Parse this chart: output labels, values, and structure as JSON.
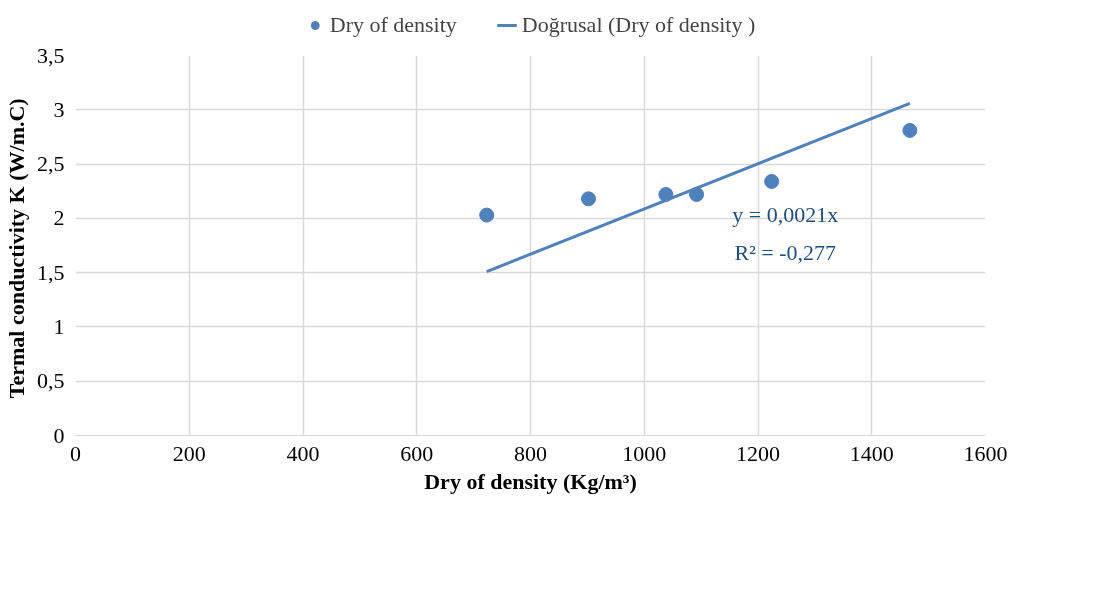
{
  "chart_data": {
    "type": "scatter",
    "xlabel": "Dry of density (Kg/m³)",
    "ylabel": "Termal conductivity  K (W/m.C)",
    "x": [
      723,
      902,
      1038,
      1092,
      1224,
      1467
    ],
    "series": [
      {
        "name": "Dry of density",
        "color": "#4f81bd",
        "marker": "circle",
        "values": [
          2.03,
          2.18,
          2.22,
          2.22,
          2.34,
          2.81
        ]
      },
      {
        "name": "Doğrusal (Dry of density )",
        "color": "#4f81bd",
        "type": "line",
        "x": [
          723,
          1467
        ],
        "values": [
          1.51,
          3.06
        ]
      }
    ],
    "annotations": [
      "y = 0,0021x",
      "R² = -0,277"
    ],
    "xlim": [
      0,
      1600
    ],
    "xticks": [
      0,
      200,
      400,
      600,
      800,
      1000,
      1200,
      1400,
      1600
    ],
    "ylim": [
      0,
      3.5
    ],
    "yticks": [
      0,
      {
        "value": 0.5,
        "label": "0,5"
      },
      1,
      {
        "value": 1.5,
        "label": "1,5"
      },
      2,
      {
        "value": 2.5,
        "label": "2,5"
      },
      3,
      {
        "value": 3.5,
        "label": "3,5"
      }
    ],
    "grid": true,
    "legend": "top"
  }
}
